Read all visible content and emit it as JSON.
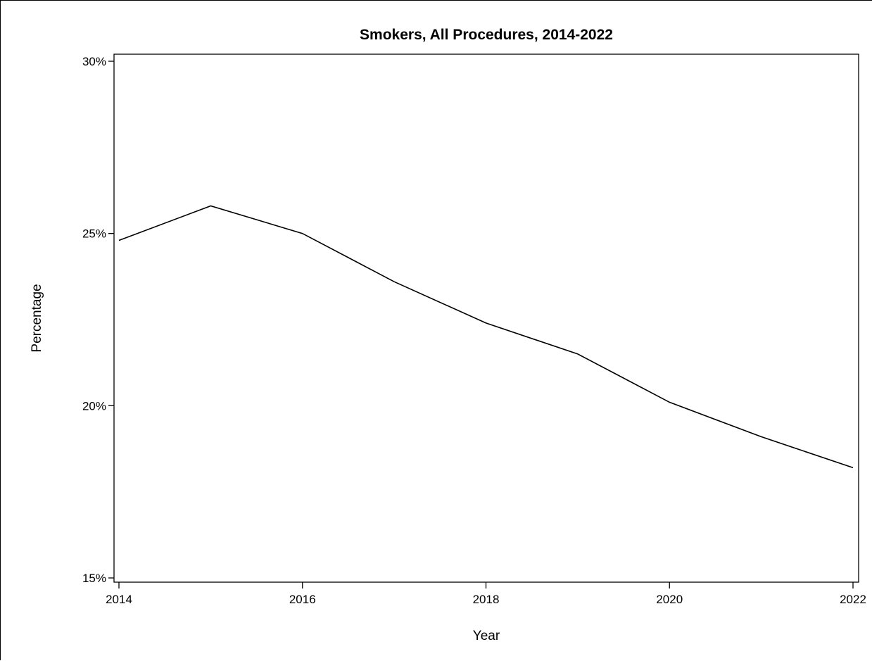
{
  "chart_data": {
    "type": "line",
    "title": "Smokers, All Procedures, 2014-2022",
    "xlabel": "Year",
    "ylabel": "Percentage",
    "x": [
      2014,
      2015,
      2016,
      2017,
      2018,
      2019,
      2020,
      2021,
      2022
    ],
    "series": [
      {
        "values": [
          24.8,
          25.8,
          25.0,
          23.6,
          22.4,
          21.5,
          20.1,
          19.1,
          18.2
        ]
      }
    ],
    "xlim": [
      2014,
      2022
    ],
    "ylim": [
      15,
      30
    ],
    "x_ticks": [
      2014,
      2016,
      2018,
      2020,
      2022
    ],
    "x_tick_labels": [
      "2014",
      "2016",
      "2018",
      "2020",
      "2022"
    ],
    "y_ticks": [
      15,
      20,
      25,
      30
    ],
    "y_tick_labels": [
      "15%",
      "20%",
      "25%",
      "30%"
    ],
    "grid": false,
    "legend": "none",
    "line_color": "#000000"
  }
}
